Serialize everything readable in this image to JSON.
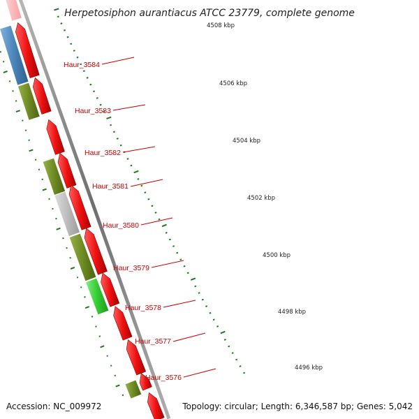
{
  "title": "Herpetosiphon aurantiacus ATCC 23779, complete genome",
  "accession_text": "Accession: NC_009972",
  "topology_text": "Topology: circular; Length: 6,346,587 bp; Genes: 5,042",
  "gene_labels": [
    "Haur_3584",
    "Haur_3583",
    "Haur_3582",
    "Haur_3581",
    "Haur_3580",
    "Haur_3579",
    "Haur_3578",
    "Haur_3577",
    "Haur_3576"
  ],
  "kbp_labels": [
    "4508 kbp",
    "4506 kbp",
    "4504 kbp",
    "4502 kbp",
    "4500 kbp",
    "4498 kbp",
    "4496 kbp"
  ],
  "colors": {
    "label_red": "#cc0000",
    "forward_gene": "#ee1111",
    "cog_blue": "#4a84b8",
    "cog_olive": "#6e8a22",
    "cog_gray": "#bdbdbd",
    "cog_green": "#33cc33",
    "backbone": "#888888",
    "tick_green": "#1e7a1e"
  }
}
